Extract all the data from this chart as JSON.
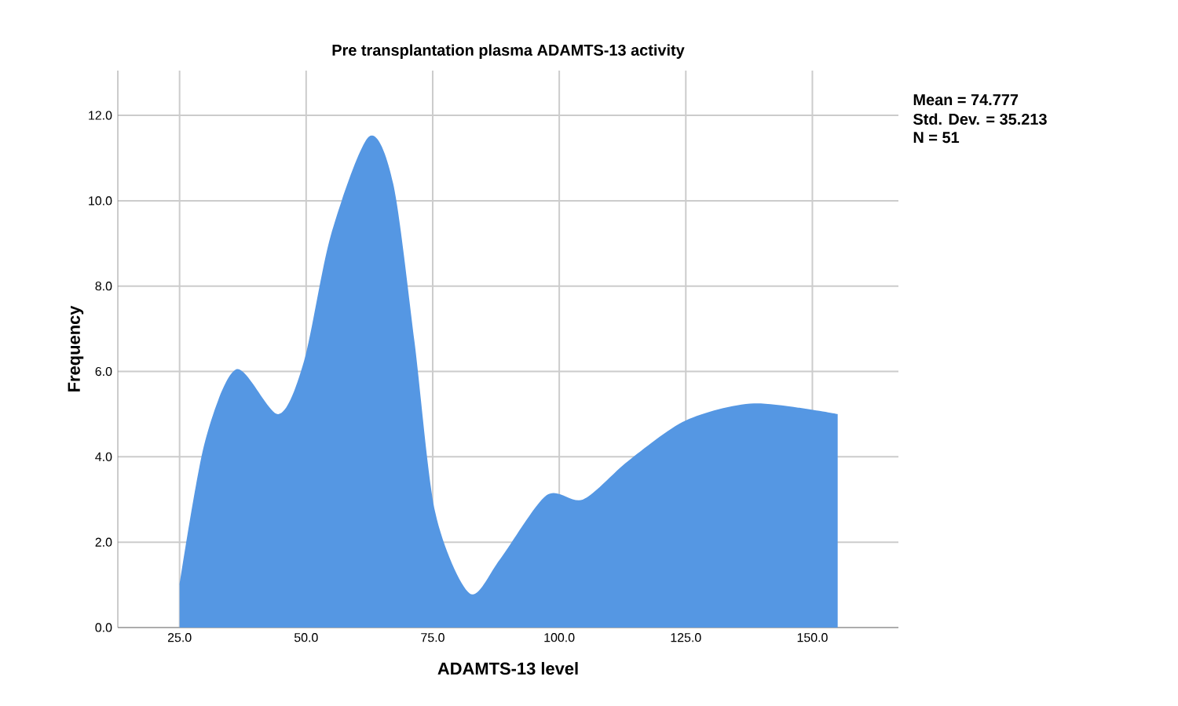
{
  "chart_data": {
    "type": "area",
    "title": "Pre transplantation plasma ADAMTS-13 activity",
    "xlabel": "ADAMTS-13 level",
    "ylabel": "Frequency",
    "annotations": [
      "Mean = 74.777",
      "Std. Dev. = 35.213",
      "N = 51"
    ],
    "x": [
      25,
      29.9,
      36.2,
      44.5,
      49.6,
      54.9,
      62.4,
      67.2,
      71.4,
      75.5,
      82.3,
      88.3,
      97.5,
      104.7,
      113.6,
      125,
      138.5,
      155
    ],
    "series": [
      {
        "color": "#5597e3",
        "values": [
          1.0,
          4.3,
          6.05,
          5.0,
          6.25,
          9.2,
          11.5,
          10.4,
          6.7,
          2.7,
          0.8,
          1.6,
          3.1,
          3.0,
          3.9,
          4.85,
          5.25,
          5.0
        ]
      }
    ],
    "xlim": [
      12.8,
      167
    ],
    "ylim": [
      0,
      13.05
    ],
    "xticks": [
      {
        "value": 25,
        "label": "25.0"
      },
      {
        "value": 50,
        "label": "50.0"
      },
      {
        "value": 75,
        "label": "75.0"
      },
      {
        "value": 100,
        "label": "100.0"
      },
      {
        "value": 125,
        "label": "125.0"
      },
      {
        "value": 150,
        "label": "150.0"
      }
    ],
    "yticks": [
      {
        "value": 0,
        "label": "0.0"
      },
      {
        "value": 2,
        "label": "2.0"
      },
      {
        "value": 4,
        "label": "4.0"
      },
      {
        "value": 6,
        "label": "6.0"
      },
      {
        "value": 8,
        "label": "8.0"
      },
      {
        "value": 10,
        "label": "10.0"
      },
      {
        "value": 12,
        "label": "12.0"
      }
    ],
    "grid": true
  }
}
